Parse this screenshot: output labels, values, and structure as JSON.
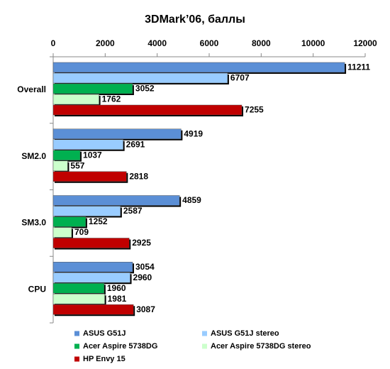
{
  "chart_data": {
    "type": "hbar",
    "title": "3DMark’06, баллы",
    "categories": [
      "Overall",
      "SM2.0",
      "SM3.0",
      "CPU"
    ],
    "series": [
      {
        "name": "ASUS G51J",
        "color": "#5b8fd6",
        "values": [
          11211,
          4919,
          4859,
          3054
        ]
      },
      {
        "name": "ASUS G51J stereo",
        "color": "#99ccff",
        "values": [
          6707,
          2691,
          2587,
          2960
        ]
      },
      {
        "name": "Acer Aspire 5738DG",
        "color": "#00b050",
        "values": [
          3052,
          1037,
          1252,
          1960
        ]
      },
      {
        "name": "Acer Aspire 5738DG stereo",
        "color": "#ccffcc",
        "values": [
          1762,
          557,
          709,
          1981
        ]
      },
      {
        "name": "HP Envy 15",
        "color": "#c00000",
        "values": [
          7255,
          2818,
          2925,
          3087
        ]
      }
    ],
    "xlim": [
      0,
      12000
    ],
    "xticks": [
      0,
      2000,
      4000,
      6000,
      8000,
      10000,
      12000
    ]
  }
}
